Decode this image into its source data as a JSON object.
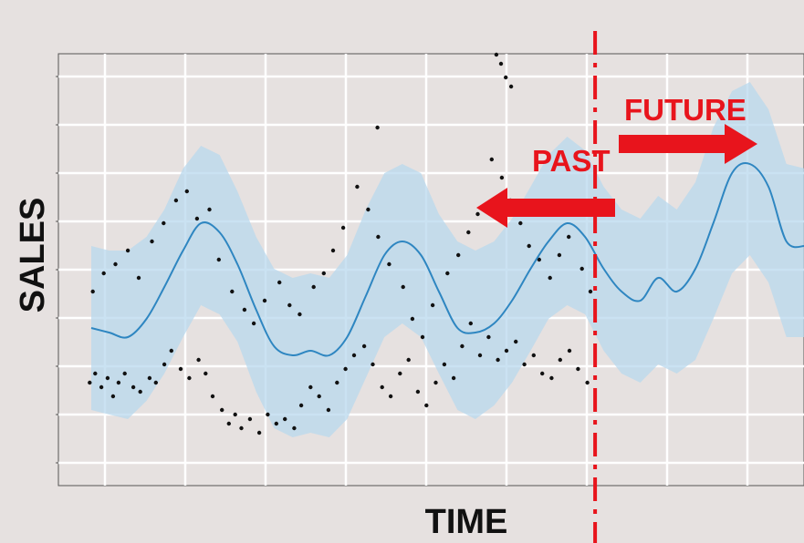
{
  "chart_data": {
    "type": "line",
    "title": "",
    "xlabel": "TIME",
    "ylabel": "SALES",
    "xlim": [
      0,
      100
    ],
    "ylim": [
      0,
      100
    ],
    "grid": true,
    "annotations": {
      "past": "PAST",
      "future": "FUTURE"
    },
    "divider_x": 69.5,
    "colors": {
      "forecast_line": "#2e86c1",
      "band": "#b8d8ee",
      "points": "#111111",
      "annotation": "#e8141c",
      "grid": "#ffffff",
      "background": "#e6e1e0"
    },
    "series": [
      {
        "kind": "forecast",
        "x": [
          4.7,
          7.0,
          9.4,
          11.8,
          14.1,
          16.5,
          18.8,
          21.2,
          23.5,
          25.9,
          28.2,
          30.6,
          32.9,
          35.3,
          37.6,
          40.0,
          42.4,
          44.7,
          47.1,
          49.4,
          51.8,
          54.1,
          56.5,
          58.8,
          61.2,
          63.5,
          65.9,
          68.2,
          70.6,
          72.9,
          75.3,
          77.6,
          80.0,
          82.4,
          84.7,
          87.1,
          89.4,
          91.8,
          94.1,
          96.5
        ],
        "y": [
          32,
          31,
          30,
          34,
          41,
          49,
          55,
          53,
          46,
          36,
          28,
          26,
          27,
          26,
          30,
          39,
          48,
          51,
          48,
          40,
          32,
          31,
          33,
          38,
          45,
          51,
          55,
          52,
          45,
          40,
          38,
          43,
          40,
          45,
          55,
          66,
          68,
          63,
          51,
          50
        ]
      },
      {
        "kind": "band_upper",
        "x": [
          4.7,
          7.0,
          9.4,
          11.8,
          14.1,
          16.5,
          18.8,
          21.2,
          23.5,
          25.9,
          28.2,
          30.6,
          32.9,
          35.3,
          37.6,
          40.0,
          42.4,
          44.7,
          47.1,
          49.4,
          51.8,
          54.1,
          56.5,
          58.8,
          61.2,
          63.5,
          65.9,
          68.2,
          70.6,
          72.9,
          75.3,
          77.6,
          80.0,
          82.4,
          84.7,
          87.1,
          89.4,
          91.8,
          94.1,
          96.5
        ],
        "y": [
          50,
          49,
          49,
          52,
          58,
          67,
          72,
          70,
          62,
          52,
          45,
          43,
          44,
          43,
          48,
          58,
          66,
          68,
          66,
          57,
          51,
          49,
          51,
          56,
          63,
          70,
          74,
          71,
          63,
          58,
          56,
          61,
          58,
          64,
          76,
          84,
          86,
          80,
          68,
          67
        ]
      },
      {
        "kind": "band_lower",
        "x": [
          4.7,
          7.0,
          9.4,
          11.8,
          14.1,
          16.5,
          18.8,
          21.2,
          23.5,
          25.9,
          28.2,
          30.6,
          32.9,
          35.3,
          37.6,
          40.0,
          42.4,
          44.7,
          47.1,
          49.4,
          51.8,
          54.1,
          56.5,
          58.8,
          61.2,
          63.5,
          65.9,
          68.2,
          70.6,
          72.9,
          75.3,
          77.6,
          80.0,
          82.4,
          84.7,
          87.1,
          89.4,
          91.8,
          94.1,
          96.5
        ],
        "y": [
          14,
          13,
          12,
          16,
          22,
          30,
          37,
          35,
          29,
          18,
          10,
          8,
          9,
          8,
          12,
          21,
          30,
          33,
          30,
          22,
          14,
          12,
          15,
          20,
          27,
          34,
          37,
          35,
          27,
          22,
          20,
          24,
          22,
          25,
          34,
          44,
          48,
          42,
          30,
          30
        ]
      },
      {
        "kind": "observed",
        "x": [
          4.5,
          5.2,
          6.0,
          6.8,
          7.5,
          8.2,
          9.0,
          10.1,
          11.0,
          12.2,
          13.0,
          14.1,
          15.0,
          16.2,
          17.3,
          18.5,
          19.4,
          20.3,
          21.5,
          22.4,
          23.2,
          24.0,
          25.1,
          26.3,
          27.4,
          28.5,
          29.6,
          30.8,
          31.7,
          32.9,
          34.0,
          35.2,
          36.3,
          37.4,
          38.5,
          39.8,
          40.9,
          42.1,
          43.2,
          44.4,
          45.5,
          46.7,
          47.8,
          49.0,
          50.1,
          51.3,
          52.4,
          53.5,
          54.7,
          55.8,
          57.0,
          58.1,
          59.3,
          60.4,
          61.6,
          62.7,
          63.9,
          65.0,
          66.2,
          67.3,
          68.5,
          4.9,
          6.3,
          7.8,
          9.4,
          10.8,
          12.5,
          14.0,
          15.6,
          17.0,
          18.3,
          19.9,
          21.1,
          22.8,
          24.4,
          25.6,
          27.0,
          28.9,
          30.2,
          31.5,
          33.3,
          34.6,
          35.8,
          37.1,
          38.9,
          40.3,
          41.6,
          43.0,
          44.8,
          46.0,
          47.3,
          48.6,
          50.5,
          51.9,
          53.2,
          54.4,
          56.2,
          57.5,
          58.6,
          59.9,
          61.0,
          62.3,
          63.7,
          64.9,
          66.1,
          67.8,
          68.9,
          56.8,
          57.4,
          58.0,
          58.7,
          41.5
        ],
        "y": [
          20,
          22,
          19,
          21,
          17,
          20,
          22,
          19,
          18,
          21,
          20,
          24,
          27,
          23,
          21,
          25,
          22,
          17,
          14,
          11,
          13,
          10,
          12,
          9,
          13,
          11,
          12,
          10,
          15,
          19,
          17,
          14,
          20,
          23,
          26,
          28,
          24,
          19,
          17,
          22,
          25,
          18,
          15,
          20,
          24,
          21,
          28,
          33,
          26,
          30,
          25,
          27,
          29,
          24,
          26,
          22,
          21,
          25,
          27,
          23,
          20,
          40,
          44,
          46,
          49,
          43,
          51,
          55,
          60,
          62,
          56,
          58,
          47,
          40,
          36,
          33,
          38,
          42,
          37,
          35,
          41,
          44,
          49,
          54,
          63,
          58,
          52,
          46,
          41,
          34,
          30,
          37,
          44,
          48,
          53,
          57,
          69,
          65,
          60,
          55,
          50,
          47,
          43,
          48,
          52,
          45,
          40,
          92,
          90,
          87,
          85,
          76
        ]
      }
    ]
  }
}
